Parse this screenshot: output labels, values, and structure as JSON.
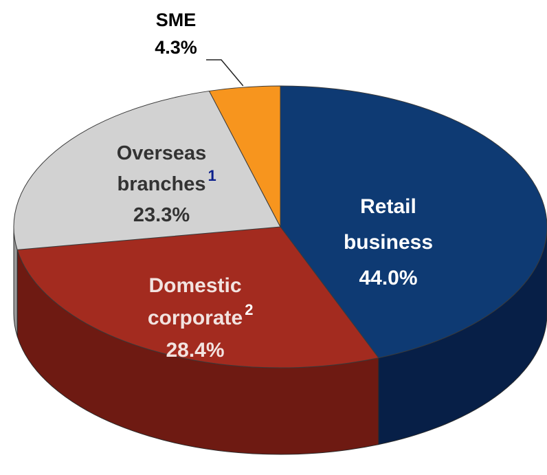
{
  "chart_data": {
    "type": "pie",
    "style": "3d",
    "title": "",
    "slices": [
      {
        "key": "retail",
        "lines": [
          "Retail",
          "business"
        ],
        "sup": "",
        "pct_label": "44.0%",
        "value": 44.0,
        "color": "#0e3a73",
        "side_color": "#071f47",
        "sup_color": "#ffffff",
        "text_color": "#ffffff"
      },
      {
        "key": "domestic",
        "lines": [
          "Domestic",
          "corporate"
        ],
        "sup": "2",
        "pct_label": "28.4%",
        "value": 28.4,
        "color": "#a32b1f",
        "side_color": "#6e1a12",
        "sup_color": "#ffffff",
        "text_color": "#f2e3e0"
      },
      {
        "key": "overseas",
        "lines": [
          "Overseas",
          "branches"
        ],
        "sup": "1",
        "pct_label": "23.3%",
        "value": 23.3,
        "color": "#d2d2d2",
        "side_color": "#9a9a9a",
        "sup_color": "#0b1f8c",
        "text_color": "#333333"
      },
      {
        "key": "sme",
        "lines": [
          "SME"
        ],
        "sup": "",
        "pct_label": "4.3%",
        "value": 4.3,
        "color": "#f7951e",
        "side_color": "#b86a10",
        "sup_color": "#000000",
        "text_color": "#000000"
      }
    ]
  }
}
